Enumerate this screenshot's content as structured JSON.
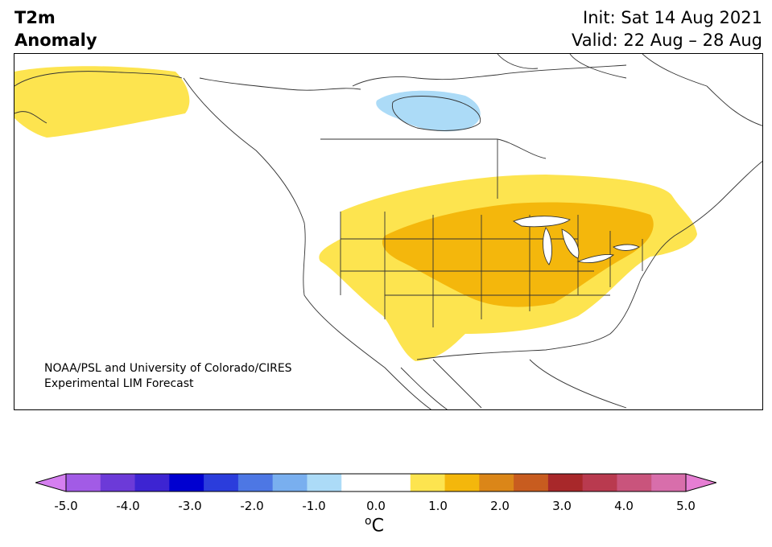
{
  "title": {
    "line1": "T2m",
    "line2": "Anomaly"
  },
  "info": {
    "init": "Init: Sat 14 Aug 2021",
    "valid": "Valid: 22 Aug – 28 Aug"
  },
  "credit": {
    "line1": "NOAA/PSL and University of Colorado/CIRES",
    "line2": "Experimental LIM Forecast"
  },
  "colorbar": {
    "unit_sup": "o",
    "unit": "C",
    "ticks": [
      "-5.0",
      "-4.0",
      "-3.0",
      "-2.0",
      "-1.0",
      "0.0",
      "1.0",
      "2.0",
      "3.0",
      "4.0",
      "5.0"
    ],
    "tick_values": [
      -5,
      -4,
      -3,
      -2,
      -1,
      0,
      1,
      2,
      3,
      4,
      5
    ],
    "range": [
      -5,
      5
    ],
    "step": 0.5,
    "colors": [
      "#d57ff0",
      "#a25be6",
      "#6c3ad8",
      "#3d24d2",
      "#0000d0",
      "#2b3ddc",
      "#4d77e4",
      "#79afef",
      "#acdbf7",
      "#ffffff",
      "#ffffff",
      "#fde44f",
      "#f4b70c",
      "#db8618",
      "#c85c1f",
      "#a8282a",
      "#b93a4f",
      "#c9547c",
      "#d86eab",
      "#e67ed3"
    ]
  },
  "map": {
    "region": "North America",
    "anomaly_areas": [
      {
        "name": "alaska-warm",
        "level": "0.5 to 1.0",
        "color": "#fde44f"
      },
      {
        "name": "hudson-bay-cool",
        "level": "-1.0 to -0.5",
        "color": "#acdbf7"
      },
      {
        "name": "central-us-warm",
        "level": "0.5 to 1.0",
        "color": "#fde44f"
      },
      {
        "name": "midwest-warm-core",
        "level": "1.0 to 1.5",
        "color": "#f4b70c"
      }
    ]
  }
}
